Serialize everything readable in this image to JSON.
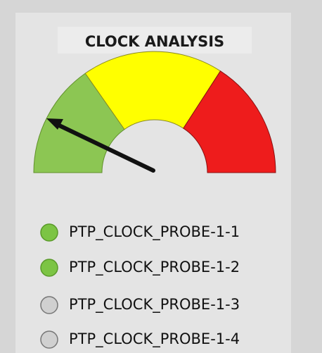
{
  "widget": {
    "title": "CLOCK ANALYSIS",
    "probes": [
      {
        "label": "PTP_CLOCK_PROBE-1-1",
        "color": "#7cc444"
      },
      {
        "label": "PTP_CLOCK_PROBE-1-2",
        "color": "#7cc444"
      },
      {
        "label": "PTP_CLOCK_PROBE-1-3",
        "color": "#d0d0d0"
      },
      {
        "label": "PTP_CLOCK_PROBE-1-4",
        "color": "#d0d0d0"
      }
    ]
  }
}
